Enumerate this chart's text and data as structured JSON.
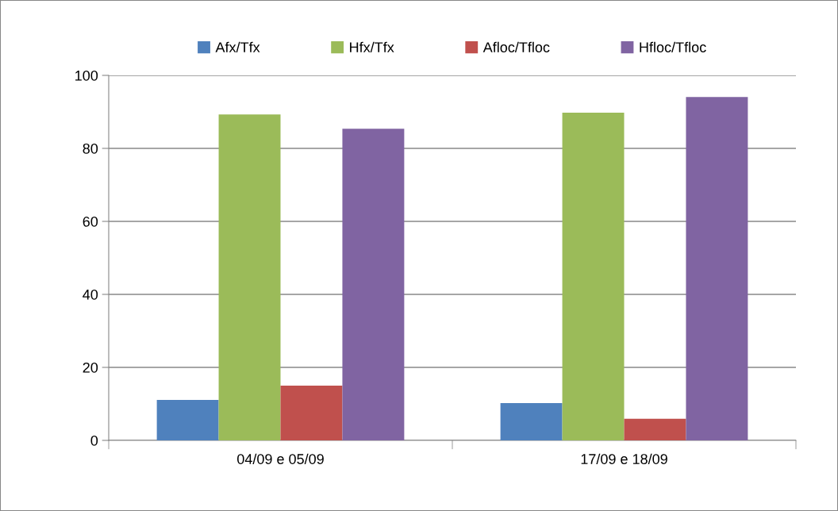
{
  "chart_data": {
    "type": "bar",
    "categories": [
      "04/09 e 05/09",
      "17/09 e 18/09"
    ],
    "series": [
      {
        "name": "Afx/Tfx",
        "color": "#4f81bd",
        "values": [
          11.1,
          10.2
        ]
      },
      {
        "name": "Hfx/Tfx",
        "color": "#9bbb59",
        "values": [
          89.3,
          89.8
        ]
      },
      {
        "name": "Afloc/Tfloc",
        "color": "#c0504d",
        "values": [
          15.0,
          5.9
        ]
      },
      {
        "name": "Hfloc/Tfloc",
        "color": "#8064a2",
        "values": [
          85.4,
          94.1
        ]
      }
    ],
    "ylim": [
      0,
      100
    ],
    "yticks": [
      0,
      20,
      40,
      60,
      80,
      100
    ],
    "grid": "y",
    "legend": "top"
  }
}
